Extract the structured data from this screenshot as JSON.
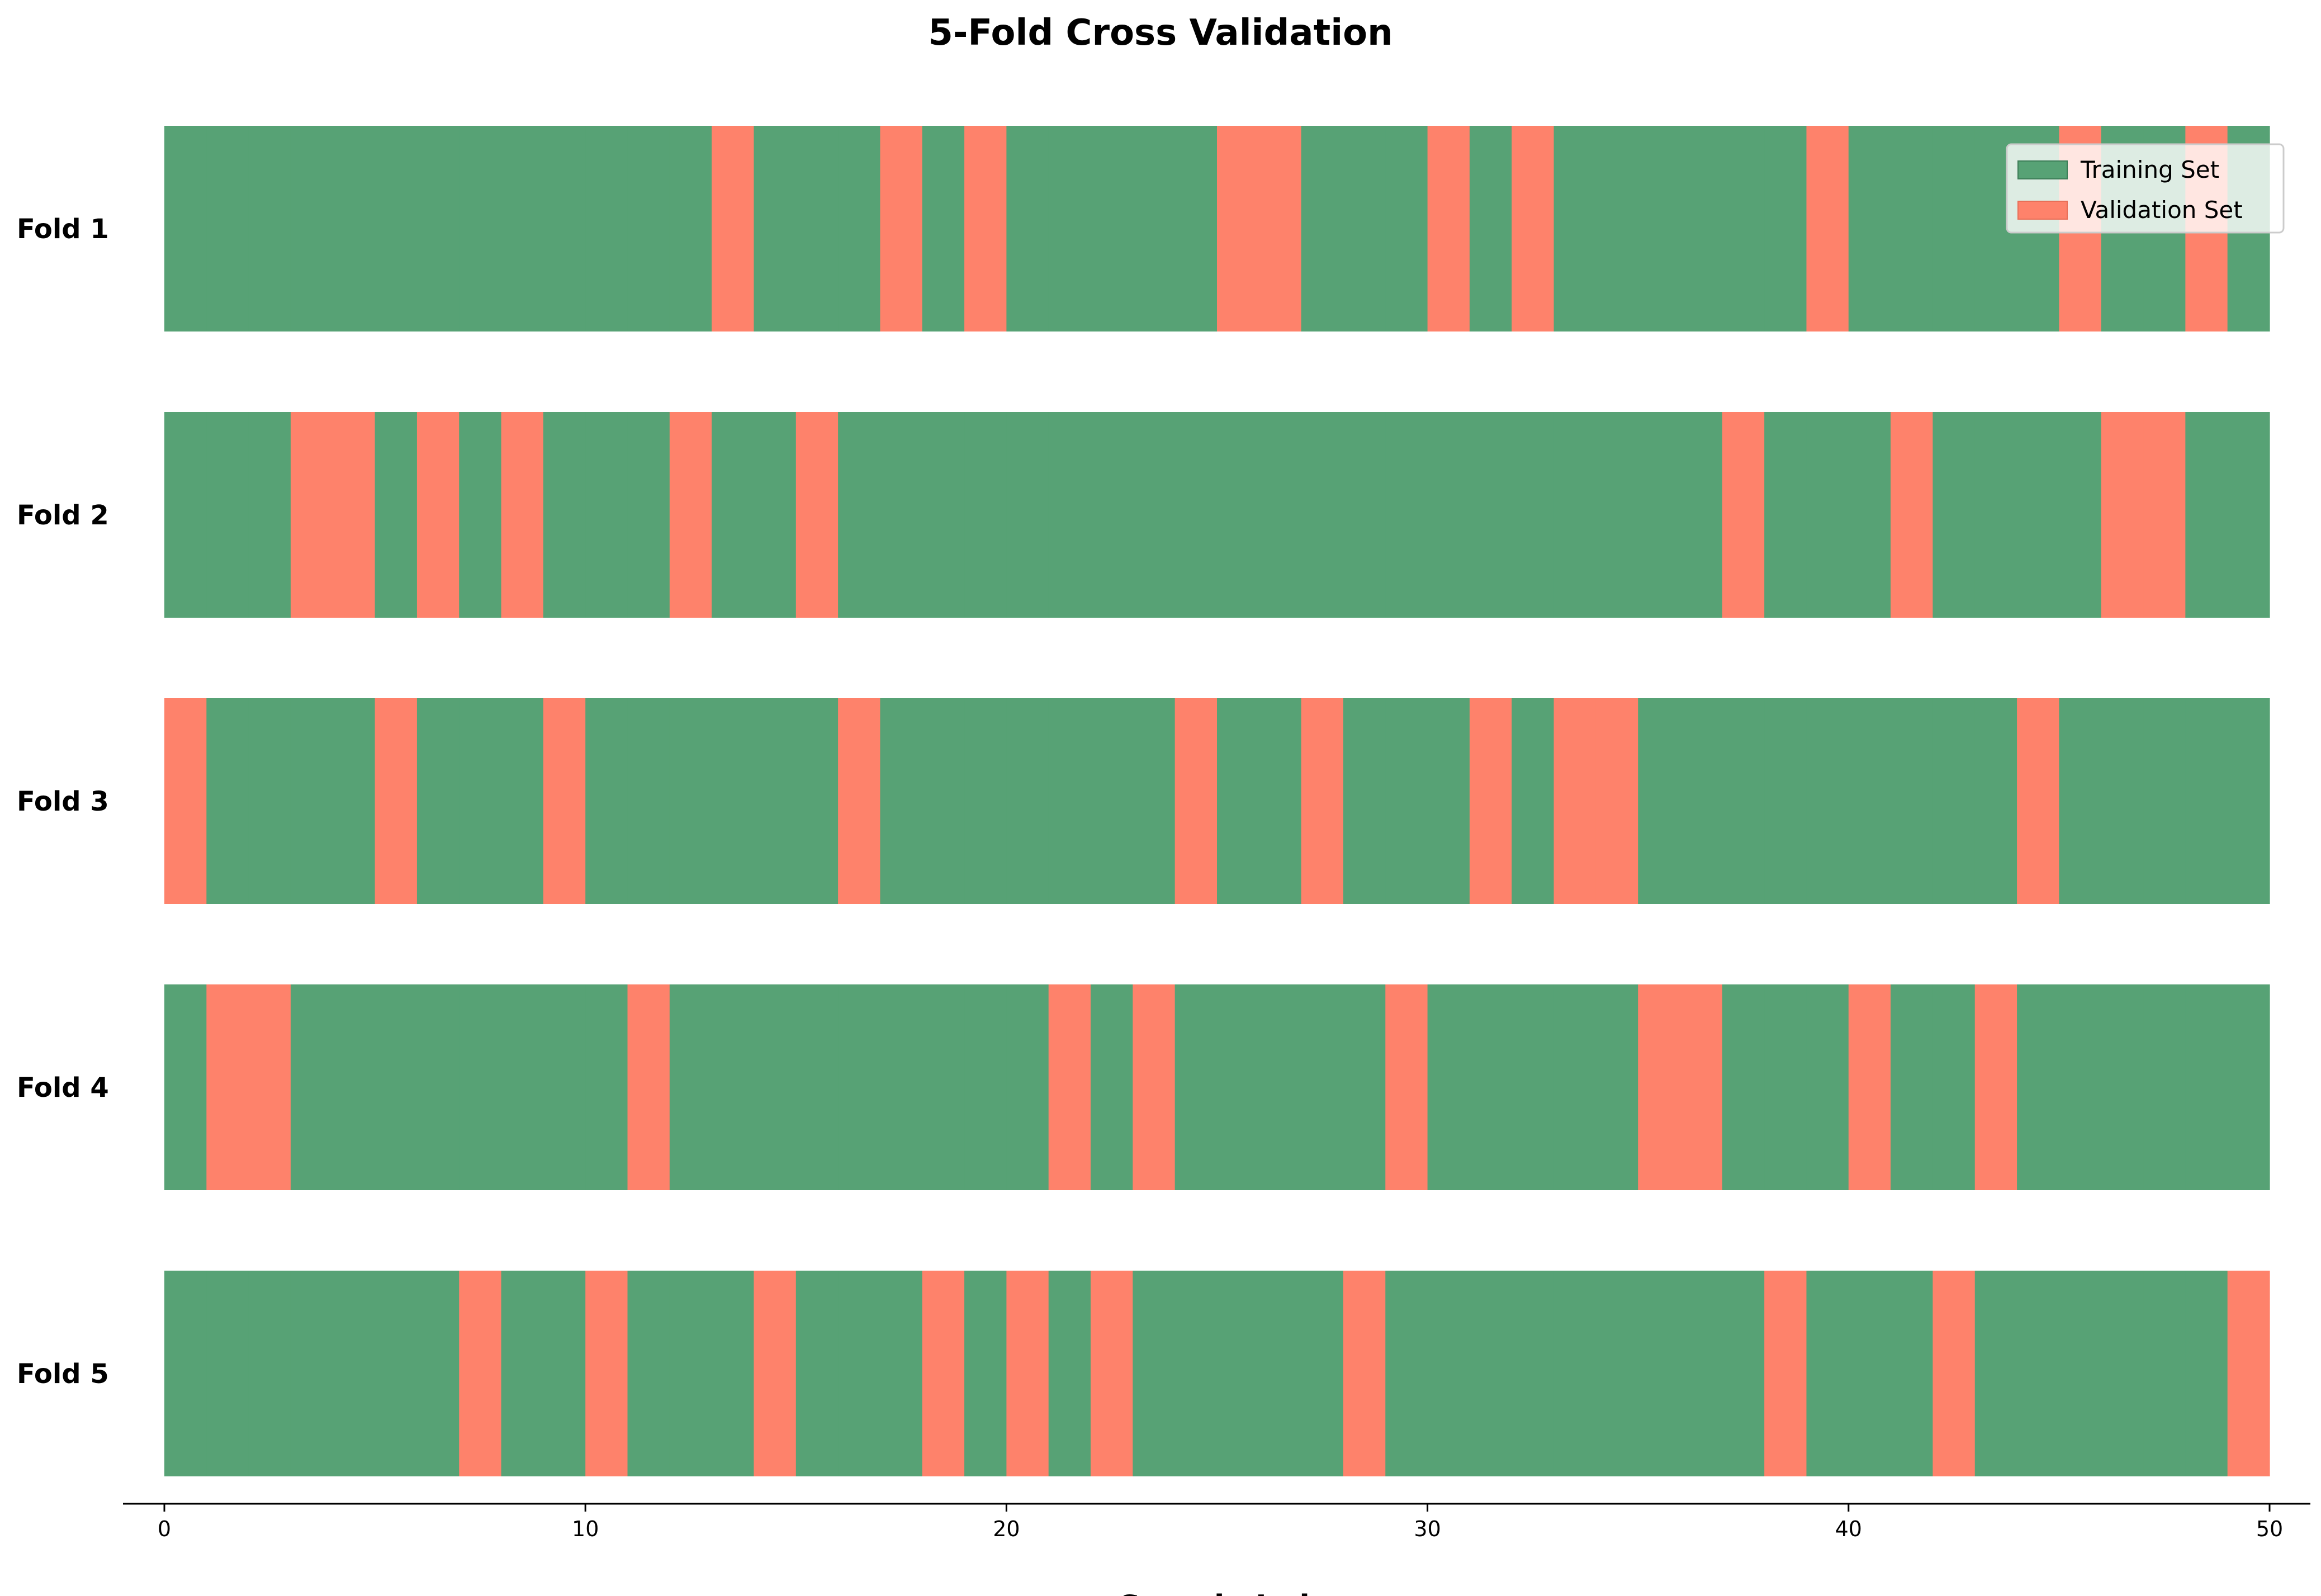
{
  "chart_data": {
    "type": "bar",
    "orientation": "horizontal-segments",
    "title": "5-Fold Cross Validation",
    "xlabel": "Sample Index",
    "ylabel": "",
    "xlim": [
      0,
      50
    ],
    "xticks": [
      0,
      10,
      20,
      30,
      40,
      50
    ],
    "grid": false,
    "legend_position": "top-right",
    "colors": {
      "training": "#57a275",
      "validation": "#fe826b"
    },
    "legend": [
      {
        "key": "training",
        "label": "Training Set"
      },
      {
        "key": "validation",
        "label": "Validation Set"
      }
    ],
    "n_samples": 50,
    "folds": [
      {
        "label": "Fold 1",
        "validation_indices": [
          13,
          17,
          19,
          25,
          26,
          30,
          32,
          39,
          45,
          48
        ]
      },
      {
        "label": "Fold 2",
        "validation_indices": [
          3,
          4,
          6,
          8,
          12,
          15,
          37,
          41,
          46,
          47
        ]
      },
      {
        "label": "Fold 3",
        "validation_indices": [
          0,
          5,
          9,
          16,
          24,
          27,
          31,
          33,
          34,
          44
        ]
      },
      {
        "label": "Fold 4",
        "validation_indices": [
          1,
          2,
          11,
          21,
          23,
          29,
          35,
          36,
          40,
          43
        ]
      },
      {
        "label": "Fold 5",
        "validation_indices": [
          7,
          10,
          14,
          18,
          20,
          22,
          28,
          38,
          42,
          49
        ]
      }
    ]
  }
}
